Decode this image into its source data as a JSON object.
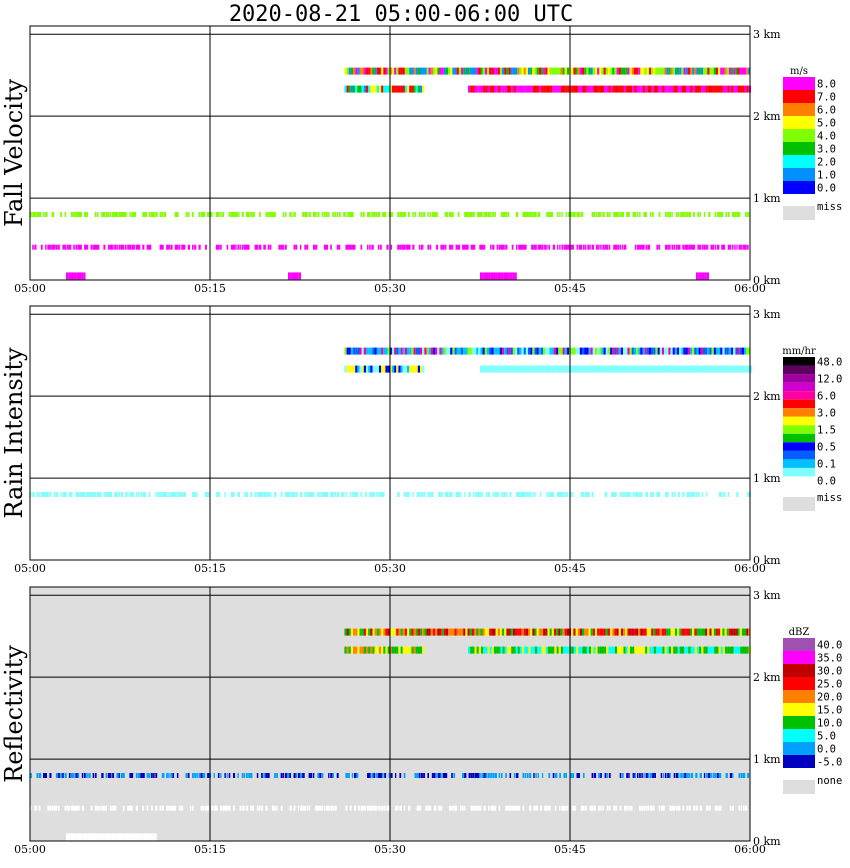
{
  "chart_data": {
    "type": "heatmap",
    "title": "2020-08-21   05:00-06:00 UTC",
    "x_tick_labels": [
      "05:00",
      "05:15",
      "05:30",
      "05:45",
      "06:00"
    ],
    "x_range_minutes": [
      0,
      60
    ],
    "y_tick_labels": [
      "0 km",
      "1 km",
      "2 km",
      "3 km"
    ],
    "y_range_km": [
      0,
      3.1
    ],
    "panels": [
      {
        "name": "fall-velocity",
        "ylabel": "Fall Velocity",
        "unit": "m/s",
        "missing_label": "miss",
        "background": "#ffffff",
        "colorbar": [
          {
            "label": "8.0",
            "color": "#ff00ff"
          },
          {
            "label": "7.0",
            "color": "#ff0000"
          },
          {
            "label": "6.0",
            "color": "#ff8000"
          },
          {
            "label": "5.0",
            "color": "#ffff00"
          },
          {
            "label": "4.0",
            "color": "#80ff00"
          },
          {
            "label": "3.0",
            "color": "#00c000"
          },
          {
            "label": "2.0",
            "color": "#00ffff"
          },
          {
            "label": "1.0",
            "color": "#0090ff"
          },
          {
            "label": "0.0",
            "color": "#0000ff"
          }
        ],
        "missing_color": "#dedede",
        "bands": [
          {
            "t0": 26.2,
            "t1": 60,
            "z": 2.55,
            "colors": [
              "#ffff00",
              "#00c000",
              "#0090ff",
              "#ff00ff",
              "#ff0000",
              "#ff8000",
              "#80ff00"
            ]
          },
          {
            "t0": 26.2,
            "t1": 32.8,
            "z": 2.33,
            "colors": [
              "#ff0000",
              "#00c000",
              "#0090ff",
              "#00ffff",
              "#ffff00"
            ]
          },
          {
            "t0": 36.5,
            "t1": 60,
            "z": 2.33,
            "colors": [
              "#ff00ff",
              "#ff0000"
            ]
          },
          {
            "t0": 0,
            "t1": 60,
            "z": 0.8,
            "colors": [
              "#80ff00"
            ],
            "gaps": true
          },
          {
            "t0": 0,
            "t1": 60,
            "z": 0.4,
            "colors": [
              "#ff00ff"
            ],
            "gaps": true
          },
          {
            "t0": 3,
            "t1": 4.5,
            "z": 0.05,
            "colors": [
              "#ff00ff"
            ]
          },
          {
            "t0": 21.5,
            "t1": 22.5,
            "z": 0.05,
            "colors": [
              "#ff00ff"
            ]
          },
          {
            "t0": 37.5,
            "t1": 40.5,
            "z": 0.05,
            "colors": [
              "#ff00ff"
            ]
          },
          {
            "t0": 55.5,
            "t1": 56.5,
            "z": 0.05,
            "colors": [
              "#ff00ff"
            ]
          }
        ]
      },
      {
        "name": "rain-intensity",
        "ylabel": "Rain Intensity",
        "unit": "mm/hr",
        "missing_label": "miss",
        "background": "#ffffff",
        "colorbar": [
          {
            "label": "48.0",
            "color": "#000000"
          },
          {
            "label": "",
            "color": "#600060"
          },
          {
            "label": "12.0",
            "color": "#a000a0"
          },
          {
            "label": "",
            "color": "#d000d0"
          },
          {
            "label": "6.0",
            "color": "#ff00a0"
          },
          {
            "label": "",
            "color": "#ff0000"
          },
          {
            "label": "3.0",
            "color": "#ff8000"
          },
          {
            "label": "",
            "color": "#ffff00"
          },
          {
            "label": "1.5",
            "color": "#80ff00"
          },
          {
            "label": "",
            "color": "#00c000"
          },
          {
            "label": "0.5",
            "color": "#0000ff"
          },
          {
            "label": "",
            "color": "#0060ff"
          },
          {
            "label": "0.1",
            "color": "#00c0ff"
          },
          {
            "label": "",
            "color": "#80ffff"
          },
          {
            "label": "0.0",
            "color": "#ffffff"
          }
        ],
        "missing_color": "#dedede",
        "bands": [
          {
            "t0": 26.2,
            "t1": 60,
            "z": 2.55,
            "colors": [
              "#00c0ff",
              "#0060ff",
              "#ff00a0",
              "#80ff00",
              "#0000ff",
              "#80ffff"
            ]
          },
          {
            "t0": 26.2,
            "t1": 32.8,
            "z": 2.33,
            "colors": [
              "#80ffff",
              "#0000ff",
              "#ffff00",
              "#00c0ff"
            ]
          },
          {
            "t0": 37.5,
            "t1": 60,
            "z": 2.33,
            "colors": [
              "#80ffff"
            ]
          },
          {
            "t0": 0,
            "t1": 60,
            "z": 0.8,
            "colors": [
              "#80ffff"
            ],
            "gaps": true
          }
        ]
      },
      {
        "name": "reflectivity",
        "ylabel": "Reflectivity",
        "unit": "dBZ",
        "missing_label": "none",
        "background": "#dedede",
        "colorbar": [
          {
            "label": "40.0",
            "color": "#a050b0"
          },
          {
            "label": "35.0",
            "color": "#ff00ff"
          },
          {
            "label": "30.0",
            "color": "#c00000"
          },
          {
            "label": "25.0",
            "color": "#ff0000"
          },
          {
            "label": "20.0",
            "color": "#ff8000"
          },
          {
            "label": "15.0",
            "color": "#ffff00"
          },
          {
            "label": "10.0",
            "color": "#00c000"
          },
          {
            "label": "5.0",
            "color": "#00ffff"
          },
          {
            "label": "0.0",
            "color": "#00a0ff"
          },
          {
            "label": "-5.0",
            "color": "#0000c0"
          }
        ],
        "missing_color": "#dedede",
        "bands": [
          {
            "t0": 26.2,
            "t1": 60,
            "z": 2.55,
            "colors": [
              "#ff0000",
              "#c00000",
              "#ff8000",
              "#ffff00",
              "#00c000"
            ]
          },
          {
            "t0": 26.2,
            "t1": 32.8,
            "z": 2.33,
            "colors": [
              "#ffff00",
              "#00c000",
              "#ff8000"
            ]
          },
          {
            "t0": 36.5,
            "t1": 60,
            "z": 2.33,
            "colors": [
              "#ffff00",
              "#00c000",
              "#00ffff"
            ]
          },
          {
            "t0": 0,
            "t1": 60,
            "z": 0.8,
            "colors": [
              "#0000c0",
              "#00a0ff"
            ],
            "gaps": true
          },
          {
            "t0": 0,
            "t1": 60,
            "z": 0.4,
            "colors": [
              "#ffffff"
            ],
            "gaps": true
          },
          {
            "t0": 3,
            "t1": 10.5,
            "z": 0.05,
            "colors": [
              "#ffffff"
            ]
          }
        ]
      }
    ]
  }
}
